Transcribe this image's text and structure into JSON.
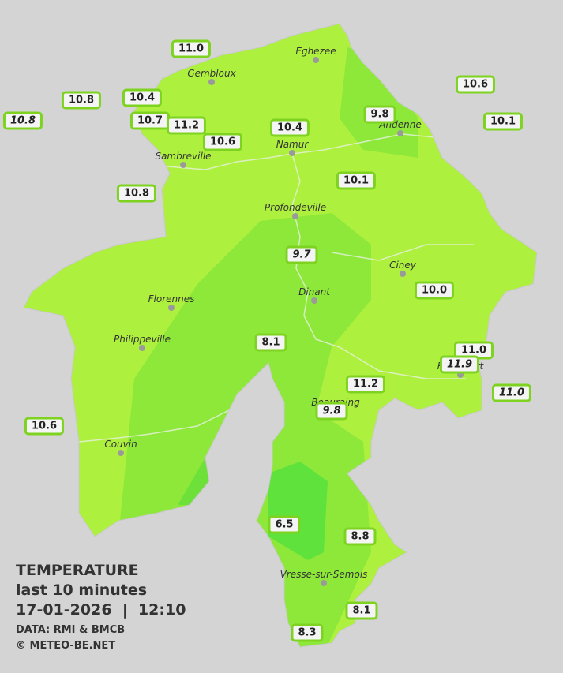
{
  "title": "TEMPERATURE",
  "subtitle": "last 10 minutes",
  "datetime": "17-01-2026  |  12:10",
  "source": "DATA: RMI & BMCB",
  "credit": "© METEO-BE.NET",
  "cities": [
    "Eghezee",
    "Gembloux",
    "Andenne",
    "Namur",
    "Sambreville",
    "Profondeville",
    "Ciney",
    "Dinant",
    "Florennes",
    "Philippeville",
    "Beauraing",
    "Rochefort",
    "Couvin",
    "Vresse-sur-Semois"
  ],
  "stations": [
    "11.0",
    "10.6",
    "10.8",
    "10.4",
    "9.8",
    "10.8",
    "10.7",
    "11.2",
    "10.4",
    "10.1",
    "10.6",
    "10.1",
    "10.8",
    "9.7",
    "10.0",
    "8.1",
    "11.0",
    "11.9",
    "11.2",
    "11.0",
    "9.8",
    "10.6",
    "6.5",
    "8.8",
    "8.1",
    "8.3"
  ]
}
